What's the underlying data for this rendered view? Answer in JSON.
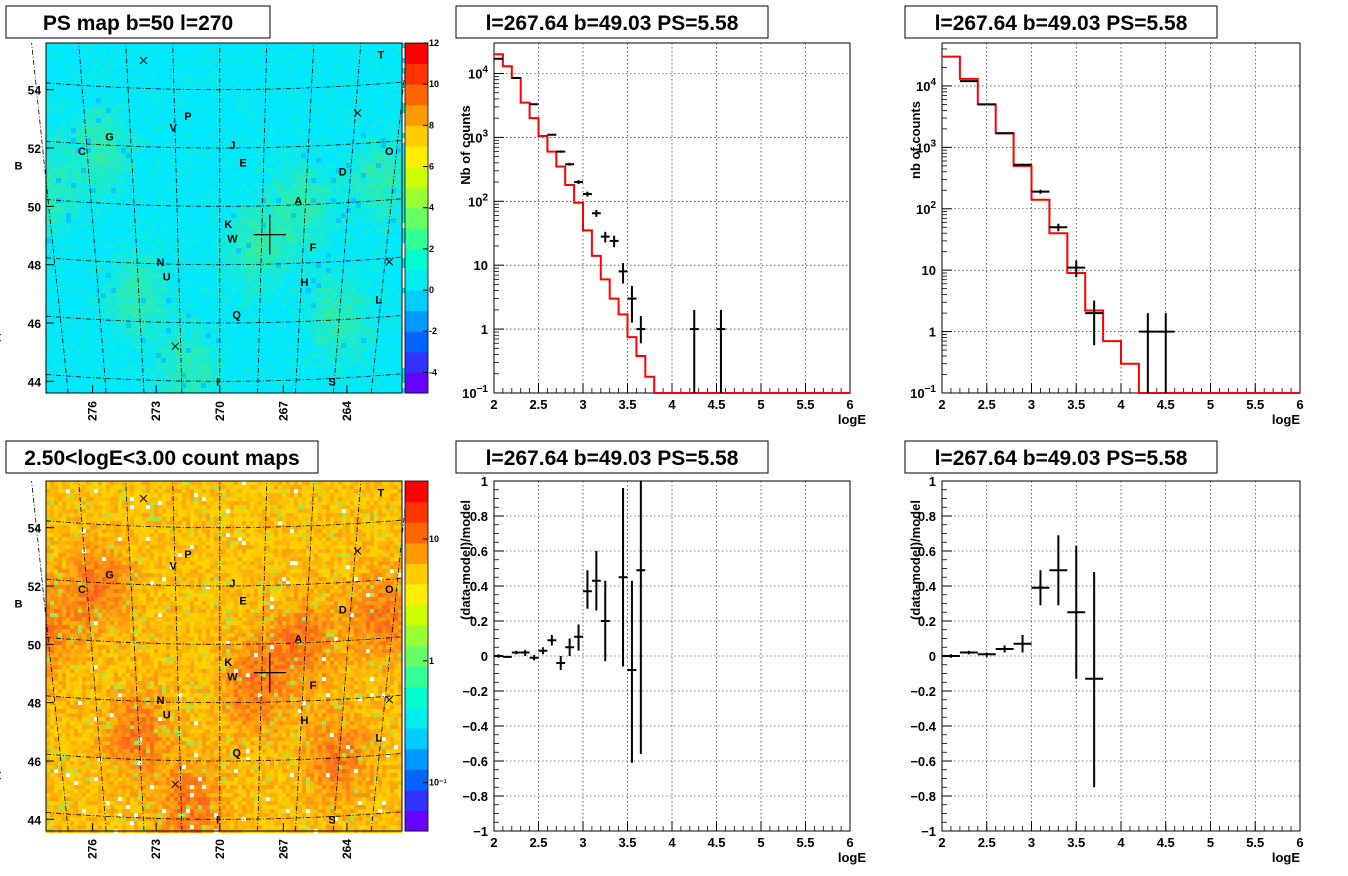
{
  "maps": [
    {
      "title": "PS map b=50 l=270",
      "colorbar_ticks": [
        "12",
        "10",
        "8",
        "6",
        "4",
        "2",
        "0",
        "-2",
        "-4"
      ],
      "colorbar_values": [
        12,
        10,
        8,
        6,
        4,
        2,
        0,
        -2,
        -4
      ],
      "colorbar_range": [
        -5,
        12
      ],
      "colorbar_scale": "linear",
      "background": "#00e8ff",
      "blob_color": "#55ee66",
      "blob_strength": 0.5,
      "y_ticks": [
        "54",
        "52",
        "50",
        "48",
        "46",
        "44"
      ],
      "x_ticks": [
        "276",
        "273",
        "270",
        "267",
        "264"
      ],
      "markers": [
        {
          "label": "T",
          "lon": 262.4,
          "lat": 55.2
        },
        {
          "label": "P",
          "lon": 271.5,
          "lat": 53.1
        },
        {
          "label": "V",
          "lon": 272.2,
          "lat": 52.7
        },
        {
          "label": "G",
          "lon": 275.2,
          "lat": 52.4
        },
        {
          "label": "C",
          "lon": 276.5,
          "lat": 51.9
        },
        {
          "label": "J",
          "lon": 269.4,
          "lat": 52.1
        },
        {
          "label": "O",
          "lon": 262.0,
          "lat": 51.9
        },
        {
          "label": "B",
          "lon": 279.5,
          "lat": 51.4
        },
        {
          "label": "E",
          "lon": 268.9,
          "lat": 51.5
        },
        {
          "label": "D",
          "lon": 264.2,
          "lat": 51.2
        },
        {
          "label": "A",
          "lon": 266.3,
          "lat": 50.2
        },
        {
          "label": "K",
          "lon": 269.6,
          "lat": 49.4
        },
        {
          "label": "W",
          "lon": 269.4,
          "lat": 48.9
        },
        {
          "label": "F",
          "lon": 265.6,
          "lat": 48.6
        },
        {
          "label": "N",
          "lon": 272.8,
          "lat": 48.1
        },
        {
          "label": "U",
          "lon": 272.5,
          "lat": 47.6
        },
        {
          "label": "H",
          "lon": 266.0,
          "lat": 47.4
        },
        {
          "label": "L",
          "lon": 262.5,
          "lat": 46.8
        },
        {
          "label": "Q",
          "lon": 269.2,
          "lat": 46.3
        },
        {
          "label": "I",
          "lon": 270.1,
          "lat": 44.0
        },
        {
          "label": "S",
          "lon": 264.7,
          "lat": 44.0
        }
      ],
      "crosses": [
        {
          "lon": 273.6,
          "lat": 55.0
        },
        {
          "lon": 263.5,
          "lat": 53.2
        },
        {
          "lon": 272.1,
          "lat": 45.2
        },
        {
          "lon": 280.5,
          "lat": 45.5
        },
        {
          "lon": 262.0,
          "lat": 48.1
        }
      ],
      "center": {
        "lon": 267.64,
        "lat": 49.03
      }
    },
    {
      "title": "2.50<logE<3.00 count maps",
      "colorbar_ticks": [
        "10",
        "1",
        "10⁻¹"
      ],
      "colorbar_values": [
        10,
        1,
        0.1
      ],
      "colorbar_range": [
        0.04,
        30
      ],
      "colorbar_scale": "log",
      "background": "#ffd400",
      "blob_color": "#ff5a1e",
      "blob_strength": 0.8,
      "y_ticks": [
        "54",
        "52",
        "50",
        "48",
        "46",
        "44"
      ],
      "x_ticks": [
        "276",
        "273",
        "270",
        "267",
        "264"
      ],
      "markers": [
        {
          "label": "T",
          "lon": 262.4,
          "lat": 55.2
        },
        {
          "label": "P",
          "lon": 271.5,
          "lat": 53.1
        },
        {
          "label": "V",
          "lon": 272.2,
          "lat": 52.7
        },
        {
          "label": "G",
          "lon": 275.2,
          "lat": 52.4
        },
        {
          "label": "C",
          "lon": 276.5,
          "lat": 51.9
        },
        {
          "label": "J",
          "lon": 269.4,
          "lat": 52.1
        },
        {
          "label": "O",
          "lon": 262.0,
          "lat": 51.9
        },
        {
          "label": "B",
          "lon": 279.5,
          "lat": 51.4
        },
        {
          "label": "E",
          "lon": 268.9,
          "lat": 51.5
        },
        {
          "label": "D",
          "lon": 264.2,
          "lat": 51.2
        },
        {
          "label": "A",
          "lon": 266.3,
          "lat": 50.2
        },
        {
          "label": "K",
          "lon": 269.6,
          "lat": 49.4
        },
        {
          "label": "W",
          "lon": 269.4,
          "lat": 48.9
        },
        {
          "label": "F",
          "lon": 265.6,
          "lat": 48.6
        },
        {
          "label": "N",
          "lon": 272.8,
          "lat": 48.1
        },
        {
          "label": "U",
          "lon": 272.5,
          "lat": 47.6
        },
        {
          "label": "H",
          "lon": 266.0,
          "lat": 47.4
        },
        {
          "label": "L",
          "lon": 262.5,
          "lat": 46.8
        },
        {
          "label": "Q",
          "lon": 269.2,
          "lat": 46.3
        },
        {
          "label": "I",
          "lon": 270.1,
          "lat": 44.0
        },
        {
          "label": "S",
          "lon": 264.7,
          "lat": 44.0
        }
      ],
      "crosses": [
        {
          "lon": 273.6,
          "lat": 55.0
        },
        {
          "lon": 263.5,
          "lat": 53.2
        },
        {
          "lon": 272.1,
          "lat": 45.2
        },
        {
          "lon": 280.5,
          "lat": 45.5
        },
        {
          "lon": 262.0,
          "lat": 48.1
        }
      ],
      "center": {
        "lon": 267.64,
        "lat": 49.03
      }
    }
  ],
  "chart_data": [
    {
      "type": "line",
      "panel": "counts-left",
      "title": "l=267.64 b=49.03 PS=5.58",
      "xlabel": "logE",
      "ylabel": "Nb of counts",
      "yscale": "log",
      "xlim": [
        2,
        6
      ],
      "ylim": [
        0.1,
        30000
      ],
      "grid": true,
      "x_ticks": [
        "2",
        "2.5",
        "3",
        "3.5",
        "4",
        "4.5",
        "5",
        "5.5",
        "6"
      ],
      "y_ticks": [
        {
          "v": 10000,
          "base": "10",
          "exp": "4"
        },
        {
          "v": 1000,
          "base": "10",
          "exp": "3"
        },
        {
          "v": 100,
          "base": "10",
          "exp": "2"
        },
        {
          "v": 10,
          "base": "10",
          "exp": ""
        },
        {
          "v": 1,
          "base": "1",
          "exp": ""
        },
        {
          "v": 0.1,
          "base": "10",
          "exp": "−1"
        }
      ],
      "model": {
        "edges": [
          2,
          2.1,
          2.2,
          2.3,
          2.4,
          2.5,
          2.6,
          2.7,
          2.8,
          2.9,
          3.0,
          3.1,
          3.2,
          3.3,
          3.4,
          3.5,
          3.6,
          3.7,
          3.8,
          3.9,
          4.0,
          4.1,
          4.2,
          6.0
        ],
        "values": [
          20000,
          13000,
          8500,
          3500,
          2000,
          1050,
          600,
          350,
          180,
          95,
          35,
          14,
          6,
          3,
          1.7,
          0.75,
          0.38,
          0.18,
          0.1,
          0.1,
          0.1,
          0.1,
          0.1
        ]
      },
      "points": [
        {
          "x": 2.05,
          "y": 17000
        },
        {
          "x": 2.25,
          "y": 8500
        },
        {
          "x": 2.45,
          "y": 3300
        },
        {
          "x": 2.65,
          "y": 1100
        },
        {
          "x": 2.75,
          "y": 600
        },
        {
          "x": 2.85,
          "y": 380
        },
        {
          "x": 2.95,
          "y": 200
        },
        {
          "x": 3.05,
          "y": 130
        },
        {
          "x": 3.15,
          "y": 65
        },
        {
          "x": 3.25,
          "y": 28
        },
        {
          "x": 3.35,
          "y": 24
        },
        {
          "x": 3.45,
          "y": 8
        },
        {
          "x": 3.55,
          "y": 3
        },
        {
          "x": 3.65,
          "y": 1,
          "ylo": 0.6,
          "yhi": 1.6
        },
        {
          "x": 4.25,
          "y": 1,
          "ylo": 0.1,
          "yhi": 2
        },
        {
          "x": 4.55,
          "y": 1,
          "ylo": 0.1,
          "yhi": 2
        }
      ],
      "xhalf": 0.05
    },
    {
      "type": "line",
      "panel": "counts-right",
      "title": "l=267.64 b=49.03 PS=5.58",
      "xlabel": "logE",
      "ylabel": "nb of counts",
      "yscale": "log",
      "xlim": [
        2,
        6
      ],
      "ylim": [
        0.1,
        50000
      ],
      "grid": true,
      "x_ticks": [
        "2",
        "2.5",
        "3",
        "3.5",
        "4",
        "4.5",
        "5",
        "5.5",
        "6"
      ],
      "y_ticks": [
        {
          "v": 10000,
          "base": "10",
          "exp": "4"
        },
        {
          "v": 1000,
          "base": "10",
          "exp": "3"
        },
        {
          "v": 100,
          "base": "10",
          "exp": "2"
        },
        {
          "v": 10,
          "base": "10",
          "exp": ""
        },
        {
          "v": 1,
          "base": "1",
          "exp": ""
        },
        {
          "v": 0.1,
          "base": "10",
          "exp": "−1"
        }
      ],
      "model": {
        "edges": [
          2,
          2.2,
          2.4,
          2.6,
          2.8,
          3.0,
          3.2,
          3.4,
          3.6,
          3.8,
          4.0,
          4.2,
          6.0
        ],
        "values": [
          30000,
          13000,
          5000,
          1700,
          500,
          140,
          40,
          9,
          2.2,
          0.7,
          0.3,
          0.1
        ]
      },
      "points": [
        {
          "x": 2.3,
          "y": 12000
        },
        {
          "x": 2.5,
          "y": 5000
        },
        {
          "x": 2.7,
          "y": 1700
        },
        {
          "x": 2.9,
          "y": 520
        },
        {
          "x": 3.1,
          "y": 190
        },
        {
          "x": 3.3,
          "y": 50
        },
        {
          "x": 3.5,
          "y": 11
        },
        {
          "x": 3.7,
          "y": 2,
          "ylo": 0.6,
          "yhi": 3.2
        },
        {
          "x": 4.3,
          "y": 1,
          "ylo": 0.1,
          "yhi": 2
        },
        {
          "x": 4.5,
          "y": 1,
          "ylo": 0.1,
          "yhi": 2
        }
      ],
      "xhalf": 0.1
    },
    {
      "type": "scatter",
      "panel": "residual-left",
      "title": "l=267.64 b=49.03 PS=5.58",
      "xlabel": "logE",
      "ylabel": "(data-model)/model",
      "yscale": "linear",
      "xlim": [
        2,
        6
      ],
      "ylim": [
        -1,
        1
      ],
      "grid": true,
      "x_ticks": [
        "2",
        "2.5",
        "3",
        "3.5",
        "4",
        "4.5",
        "5",
        "5.5",
        "6"
      ],
      "y_ticks": [
        "1",
        "0.8",
        "0.6",
        "0.4",
        "0.2",
        "0",
        "−0.2",
        "−0.4",
        "−0.6",
        "−0.8",
        "−1"
      ],
      "points": [
        {
          "x": 2.05,
          "y": 0.0,
          "ylo": -0.01,
          "yhi": 0.01
        },
        {
          "x": 2.15,
          "y": -0.005,
          "ylo": -0.01,
          "yhi": 0.0
        },
        {
          "x": 2.25,
          "y": 0.02,
          "ylo": 0.01,
          "yhi": 0.03
        },
        {
          "x": 2.35,
          "y": 0.02,
          "ylo": 0.0,
          "yhi": 0.035
        },
        {
          "x": 2.45,
          "y": -0.01,
          "ylo": -0.025,
          "yhi": 0.005
        },
        {
          "x": 2.55,
          "y": 0.03,
          "ylo": 0.01,
          "yhi": 0.05
        },
        {
          "x": 2.65,
          "y": 0.09,
          "ylo": 0.06,
          "yhi": 0.12
        },
        {
          "x": 2.75,
          "y": -0.04,
          "ylo": -0.08,
          "yhi": 0.0
        },
        {
          "x": 2.85,
          "y": 0.05,
          "ylo": 0.0,
          "yhi": 0.1
        },
        {
          "x": 2.95,
          "y": 0.11,
          "ylo": 0.03,
          "yhi": 0.18
        },
        {
          "x": 3.05,
          "y": 0.37,
          "ylo": 0.27,
          "yhi": 0.49
        },
        {
          "x": 3.15,
          "y": 0.43,
          "ylo": 0.26,
          "yhi": 0.6
        },
        {
          "x": 3.25,
          "y": 0.2,
          "ylo": -0.03,
          "yhi": 0.43
        },
        {
          "x": 3.45,
          "y": 0.45,
          "ylo": -0.06,
          "yhi": 0.96
        },
        {
          "x": 3.55,
          "y": -0.08,
          "ylo": -0.61,
          "yhi": 0.43
        },
        {
          "x": 3.65,
          "y": 0.49,
          "ylo": -0.56,
          "yhi": 1.0
        }
      ],
      "xhalf": 0.05
    },
    {
      "type": "scatter",
      "panel": "residual-right",
      "title": "l=267.64 b=49.03 PS=5.58",
      "xlabel": "logE",
      "ylabel": "(data-model)/model",
      "yscale": "linear",
      "xlim": [
        2,
        6
      ],
      "ylim": [
        -1,
        1
      ],
      "grid": true,
      "x_ticks": [
        "2",
        "2.5",
        "3",
        "3.5",
        "4",
        "4.5",
        "5",
        "5.5",
        "6"
      ],
      "y_ticks": [
        "1",
        "0.8",
        "0.6",
        "0.4",
        "0.2",
        "0",
        "−0.2",
        "−0.4",
        "−0.6",
        "−0.8",
        "−1"
      ],
      "points": [
        {
          "x": 2.1,
          "y": 0.0,
          "ylo": -0.01,
          "yhi": 0.01
        },
        {
          "x": 2.3,
          "y": 0.02,
          "ylo": 0.01,
          "yhi": 0.03
        },
        {
          "x": 2.5,
          "y": 0.01,
          "ylo": -0.005,
          "yhi": 0.02
        },
        {
          "x": 2.7,
          "y": 0.04,
          "ylo": 0.02,
          "yhi": 0.06
        },
        {
          "x": 2.9,
          "y": 0.07,
          "ylo": 0.02,
          "yhi": 0.12
        },
        {
          "x": 3.1,
          "y": 0.39,
          "ylo": 0.29,
          "yhi": 0.49
        },
        {
          "x": 3.3,
          "y": 0.49,
          "ylo": 0.29,
          "yhi": 0.69
        },
        {
          "x": 3.5,
          "y": 0.25,
          "ylo": -0.13,
          "yhi": 0.63
        },
        {
          "x": 3.7,
          "y": -0.13,
          "ylo": -0.75,
          "yhi": 0.48
        }
      ],
      "xhalf": 0.1
    }
  ]
}
